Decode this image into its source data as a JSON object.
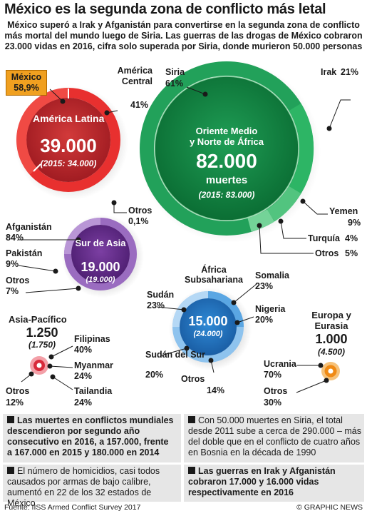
{
  "title": "México es la segunda zona de conflicto más letal",
  "subtitle": [
    "México superó a Irak y Afganistán para convertirse en la segunda zona de conflicto",
    "más mortal del mundo luego de Siria. Las guerras de las drogas de México cobraron",
    "23.000 vidas en 2016, cifra solo superada por Siria, donde murieron 50.000 personas"
  ],
  "colors": {
    "latam": "#c8282c",
    "mena": "#17924a",
    "asia": "#6a3090",
    "africa": "#2a7cc8",
    "apac": "#d82a3a",
    "europe": "#f08a14"
  },
  "latin_america": {
    "region": "América Latina",
    "total": "39.000",
    "prev": "(2015: 34.000)",
    "mexico_label": "México",
    "mexico_pct": "58,9%",
    "central_label": "América Central",
    "central_pct": "41%",
    "otros_label": "Otros",
    "otros_pct": "0,1%"
  },
  "mena": {
    "region_line1": "Oriente Medio",
    "region_line2": "y Norte de África",
    "total": "82.000",
    "unit": "muertes",
    "prev": "(2015: 83.000)",
    "siria_label": "Siria",
    "siria_pct": "61%",
    "irak_label": "Irak",
    "irak_pct": "21%",
    "yemen_label": "Yemen",
    "yemen_pct": "9%",
    "turquia_label": "Turquía",
    "turquia_pct": "4%",
    "otros_label": "Otros",
    "otros_pct": "5%"
  },
  "south_asia": {
    "region": "Sur de Asia",
    "total": "19.000",
    "prev": "(19.000)",
    "afg_label": "Afganistán",
    "afg_pct": "84%",
    "pak_label": "Pakistán",
    "pak_pct": "9%",
    "otros_label": "Otros",
    "otros_pct": "7%"
  },
  "africa": {
    "region_line1": "África",
    "region_line2": "Subsahariana",
    "total": "15.000",
    "prev": "(24.000)",
    "somalia_label": "Somalia",
    "somalia_pct": "23%",
    "sudan_label": "Sudán",
    "sudan_pct": "23%",
    "nigeria_label": "Nigeria",
    "nigeria_pct": "20%",
    "sursudan_label": "Sudán del Sur",
    "sursudan_pct": "20%",
    "otros_label": "Otros",
    "otros_pct": "14%"
  },
  "asia_pacific": {
    "region": "Asia-Pacífico",
    "total": "1.250",
    "prev": "(1.750)",
    "fil_label": "Filipinas",
    "fil_pct": "40%",
    "mya_label": "Myanmar",
    "mya_pct": "24%",
    "tai_label": "Tailandia",
    "tai_pct": "24%",
    "otros_label": "Otros",
    "otros_pct": "12%"
  },
  "europe": {
    "region_line1": "Europa y",
    "region_line2": "Eurasia",
    "total": "1.000",
    "prev": "(4.500)",
    "ucr_label": "Ucrania",
    "ucr_pct": "70%",
    "otros_label": "Otros",
    "otros_pct": "30%"
  },
  "notes": {
    "n1": [
      "Las muertes en conflictos mundiales",
      "descendieron por segundo año",
      "consecutivo en 2016, a 157.000, frente",
      "a 167.000 en 2015 y 180.000 en 2014"
    ],
    "n2": [
      "El número de homicidios, casi todos",
      "causados por armas de bajo calibre,",
      "aumentó en 22 de los 32 estados de México"
    ],
    "n3": [
      "Con 50.000 muertes en Siria, el total",
      "desde 2011 sube a cerca de 290.000 – más",
      "del doble que en el conflicto de cuatro años",
      "en Bosnia en la década de 1990"
    ],
    "n4": [
      "Las guerras en Irak y Afganistán",
      "cobraron 17.000 y 16.000 vidas",
      "respectivamente en 2016"
    ]
  },
  "footer": {
    "source": "Fuente: IISS Armed Conflict Survey 2017",
    "credit": "© GRAPHIC NEWS"
  }
}
